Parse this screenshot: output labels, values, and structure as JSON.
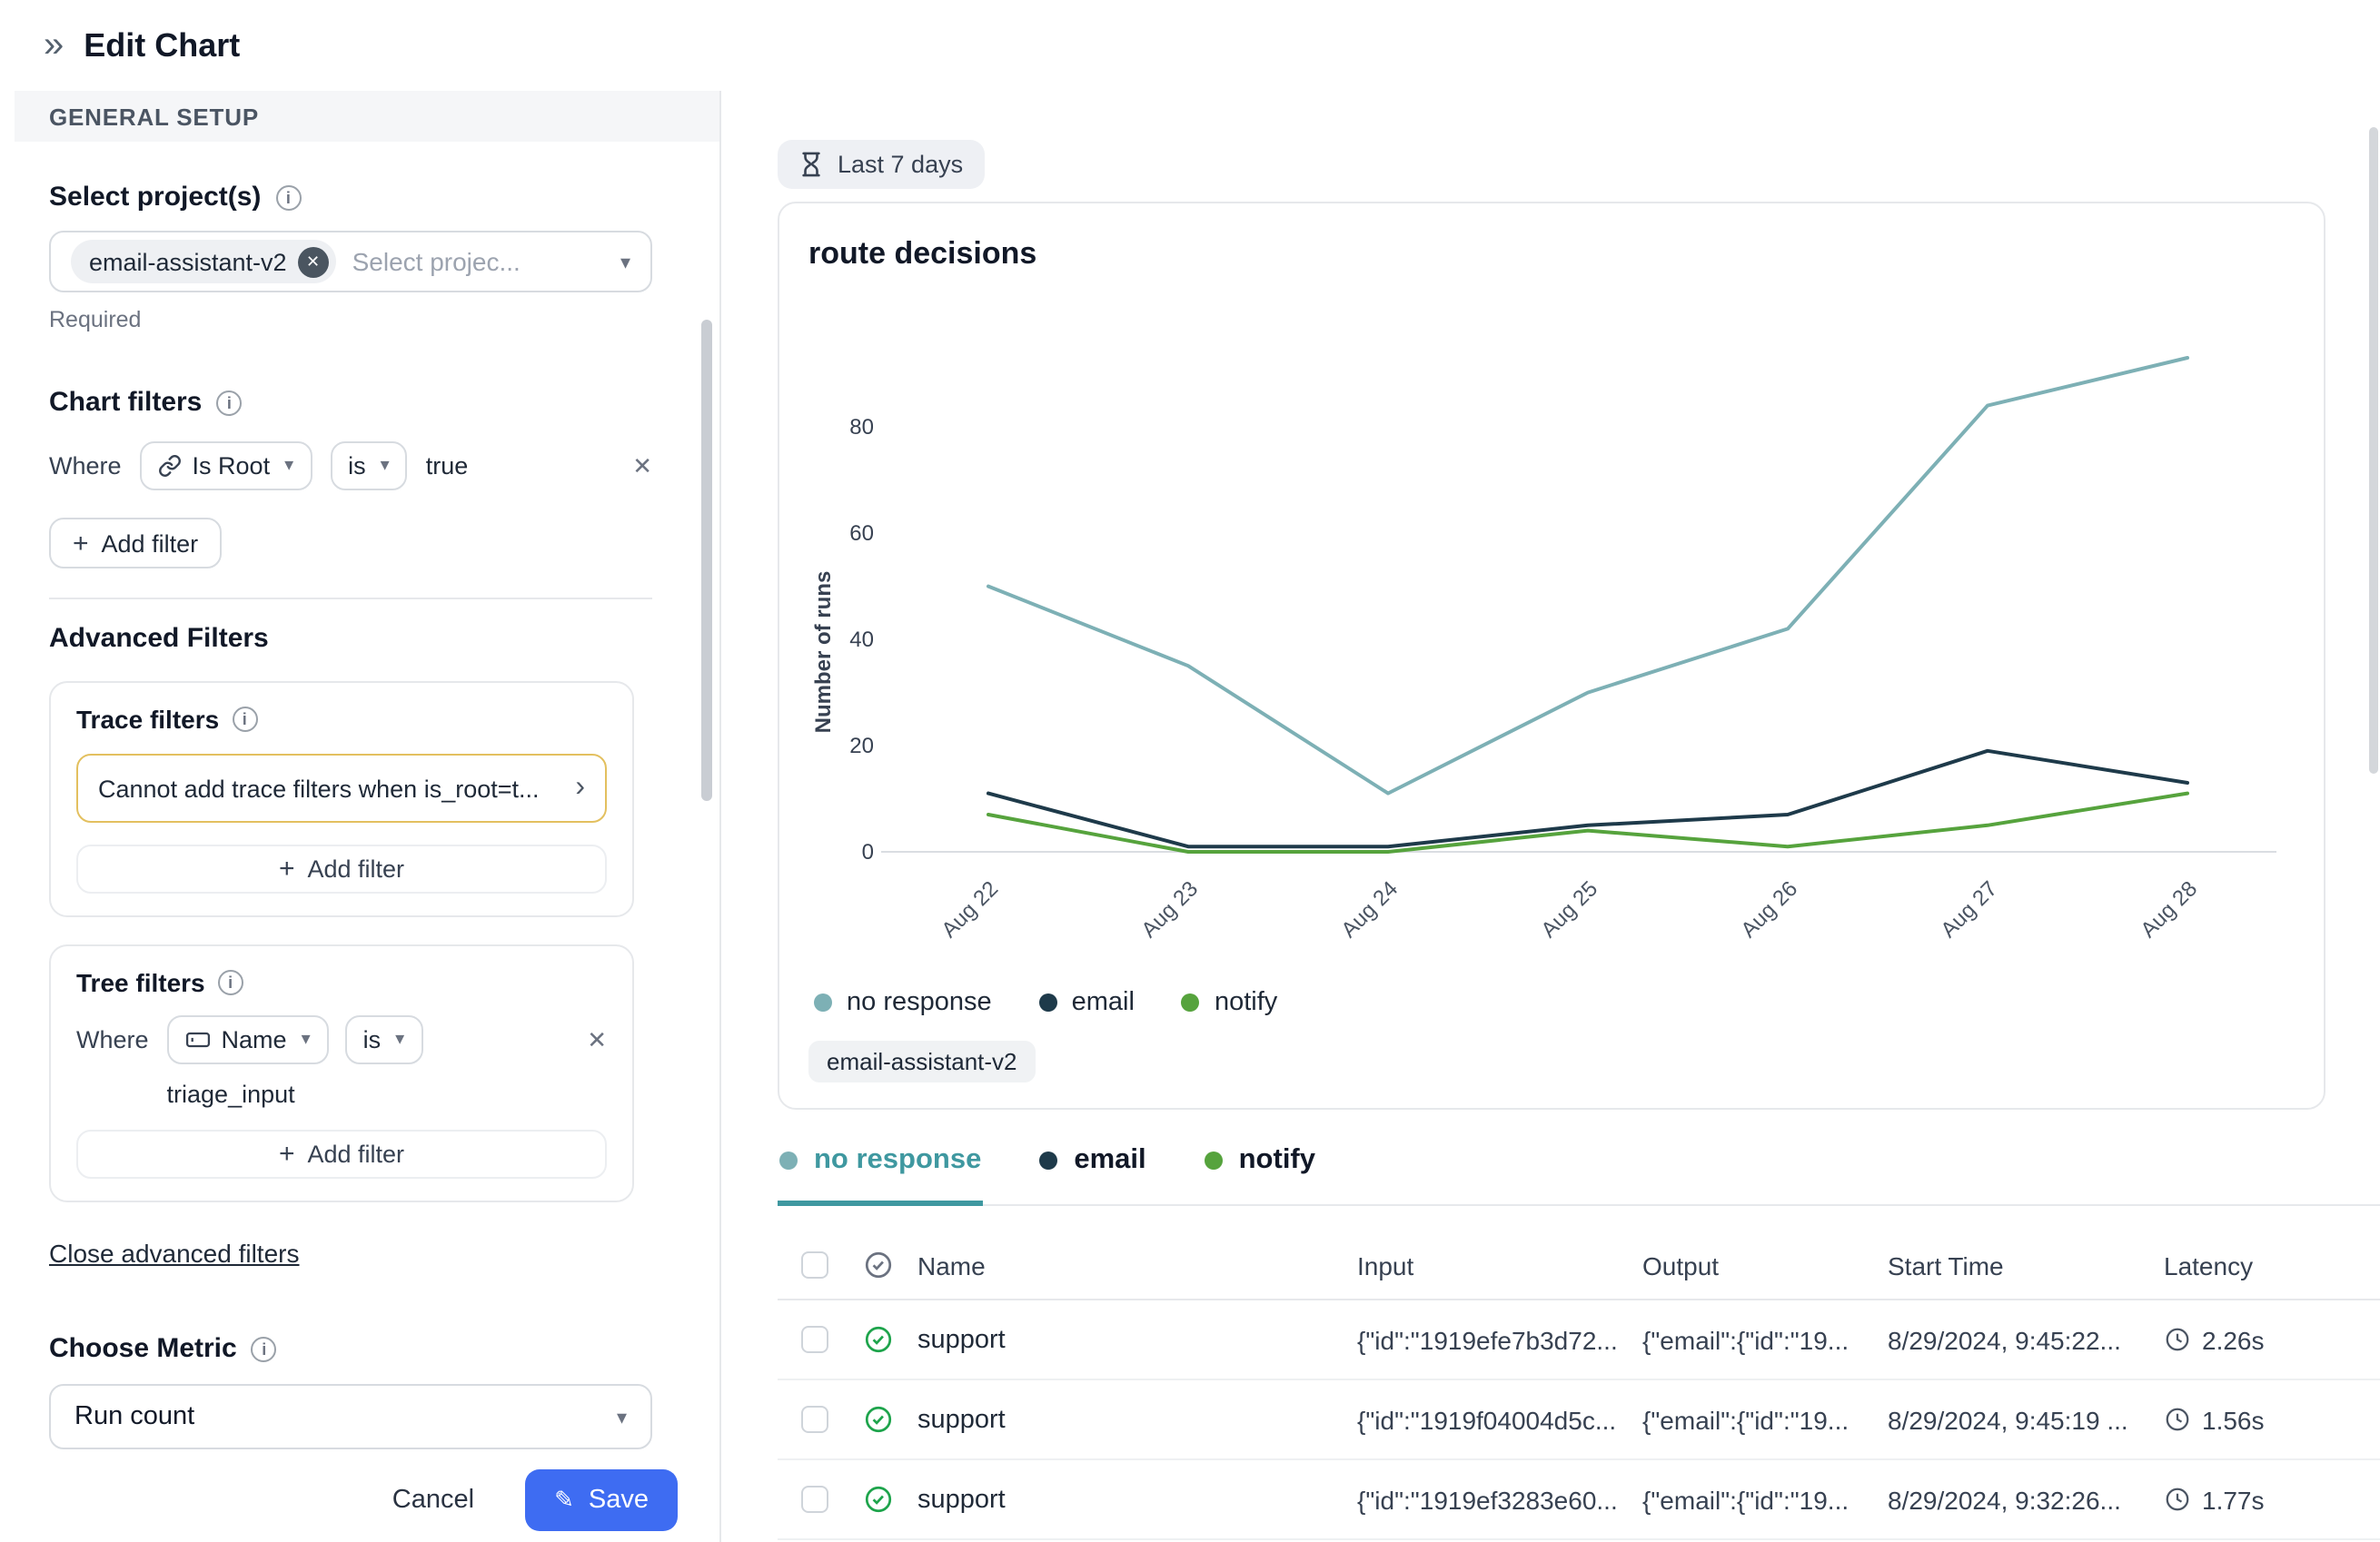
{
  "icons": {
    "collapse": "»",
    "caret": "▾",
    "close": "✕",
    "chip_close": "✕",
    "chevron_right": "›",
    "plus": "+",
    "pencil": "✎",
    "info": "i"
  },
  "colors": {
    "accent_blue": "#3e6cf2",
    "tab_active_teal": "#3f98a0",
    "warning_border": "#e3c05f"
  },
  "header": {
    "title": "Edit Chart"
  },
  "sidebar": {
    "section_title": "GENERAL SETUP",
    "select_projects": {
      "label": "Select project(s)",
      "chip": "email-assistant-v2",
      "placeholder": "Select projec...",
      "required_note": "Required"
    },
    "chart_filters": {
      "label": "Chart filters",
      "where_label": "Where",
      "field": "Is Root",
      "operator": "is",
      "value": "true",
      "add_filter": "Add filter"
    },
    "advanced": {
      "title": "Advanced Filters",
      "trace_filters": {
        "label": "Trace filters",
        "warning": "Cannot add trace filters when is_root=t...",
        "add_filter": "Add filter"
      },
      "tree_filters": {
        "label": "Tree filters",
        "where_label": "Where",
        "field": "Name",
        "operator": "is",
        "value": "triage_input",
        "add_filter": "Add filter"
      },
      "close_link": "Close advanced filters"
    },
    "choose_metric": {
      "label": "Choose Metric",
      "value": "Run count"
    },
    "footer": {
      "cancel": "Cancel",
      "save": "Save"
    }
  },
  "main": {
    "time_range": "Last 7 days",
    "chart_title": "route decisions",
    "project_chip": "email-assistant-v2",
    "tabs": [
      {
        "label": "no response"
      },
      {
        "label": "email"
      },
      {
        "label": "notify"
      }
    ],
    "table": {
      "headers": [
        "Name",
        "Input",
        "Output",
        "Start Time",
        "Latency"
      ],
      "rows": [
        {
          "status": "success",
          "name": "support",
          "input": "{\"id\":\"1919efe7b3d72...",
          "output": "{\"email\":{\"id\":\"19...",
          "start_time": "8/29/2024, 9:45:22...",
          "latency": "2.26s"
        },
        {
          "status": "success",
          "name": "support",
          "input": "{\"id\":\"1919f04004d5c...",
          "output": "{\"email\":{\"id\":\"19...",
          "start_time": "8/29/2024, 9:45:19 ...",
          "latency": "1.56s"
        },
        {
          "status": "success",
          "name": "support",
          "input": "{\"id\":\"1919ef3283e60...",
          "output": "{\"email\":{\"id\":\"19...",
          "start_time": "8/29/2024, 9:32:26...",
          "latency": "1.77s"
        }
      ]
    }
  },
  "chart_data": {
    "type": "line",
    "title": "route decisions",
    "x": [
      "Aug 22",
      "Aug 23",
      "Aug 24",
      "Aug 25",
      "Aug 26",
      "Aug 27",
      "Aug 28"
    ],
    "ylabel": "Number of runs",
    "ylim": [
      0,
      100
    ],
    "yticks": [
      0,
      20,
      40,
      60,
      80
    ],
    "grid": false,
    "legend_position": "bottom",
    "series": [
      {
        "name": "no response",
        "color": "#7db0b5",
        "values": [
          50,
          35,
          11,
          30,
          42,
          84,
          93
        ]
      },
      {
        "name": "email",
        "color": "#1e3a4a",
        "values": [
          11,
          1,
          1,
          5,
          7,
          19,
          13
        ]
      },
      {
        "name": "notify",
        "color": "#56a33d",
        "values": [
          7,
          0,
          0,
          4,
          1,
          5,
          11
        ]
      }
    ]
  }
}
